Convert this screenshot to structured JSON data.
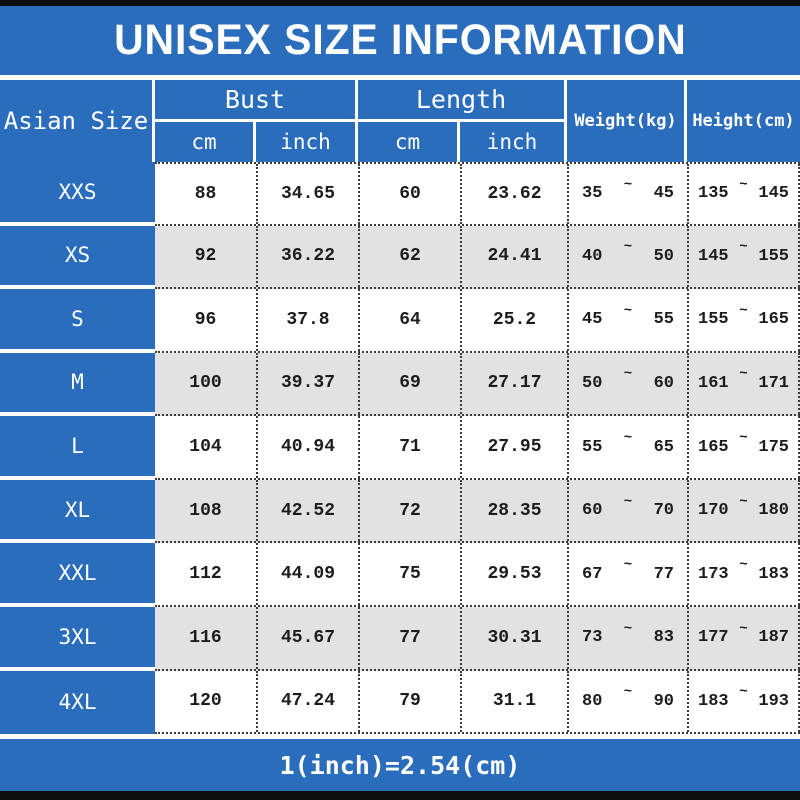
{
  "title": "UNISEX SIZE INFORMATION",
  "footer_note": "1(inch)=2.54(cm)",
  "colors": {
    "accent_blue": "#2b6dbd",
    "row_alt_gray": "#e3e2e2",
    "bar_black": "#0d0d0d",
    "text_dark": "#1c1c1c",
    "header_text": "#ffffff"
  },
  "header": {
    "size_col_label": "Asian Size",
    "groups": [
      {
        "label": "Bust",
        "subs": [
          "cm",
          "inch"
        ]
      },
      {
        "label": "Length",
        "subs": [
          "cm",
          "inch"
        ]
      }
    ],
    "weight_label": "Weight(kg)",
    "height_label": "Height(cm)"
  },
  "chart_data": {
    "type": "table",
    "title": "UNISEX SIZE INFORMATION",
    "range_separator": "~",
    "columns": [
      "Asian Size",
      "Bust cm",
      "Bust inch",
      "Length cm",
      "Length inch",
      "Weight(kg)",
      "Height(cm)"
    ],
    "rows": [
      {
        "size": "XXS",
        "bust_cm": "88",
        "bust_inch": "34.65",
        "length_cm": "60",
        "length_inch": "23.62",
        "weight_min": "35",
        "weight_max": "45",
        "height_min": "135",
        "height_max": "145"
      },
      {
        "size": "XS",
        "bust_cm": "92",
        "bust_inch": "36.22",
        "length_cm": "62",
        "length_inch": "24.41",
        "weight_min": "40",
        "weight_max": "50",
        "height_min": "145",
        "height_max": "155"
      },
      {
        "size": "S",
        "bust_cm": "96",
        "bust_inch": "37.8",
        "length_cm": "64",
        "length_inch": "25.2",
        "weight_min": "45",
        "weight_max": "55",
        "height_min": "155",
        "height_max": "165"
      },
      {
        "size": "M",
        "bust_cm": "100",
        "bust_inch": "39.37",
        "length_cm": "69",
        "length_inch": "27.17",
        "weight_min": "50",
        "weight_max": "60",
        "height_min": "161",
        "height_max": "171"
      },
      {
        "size": "L",
        "bust_cm": "104",
        "bust_inch": "40.94",
        "length_cm": "71",
        "length_inch": "27.95",
        "weight_min": "55",
        "weight_max": "65",
        "height_min": "165",
        "height_max": "175"
      },
      {
        "size": "XL",
        "bust_cm": "108",
        "bust_inch": "42.52",
        "length_cm": "72",
        "length_inch": "28.35",
        "weight_min": "60",
        "weight_max": "70",
        "height_min": "170",
        "height_max": "180"
      },
      {
        "size": "XXL",
        "bust_cm": "112",
        "bust_inch": "44.09",
        "length_cm": "75",
        "length_inch": "29.53",
        "weight_min": "67",
        "weight_max": "77",
        "height_min": "173",
        "height_max": "183"
      },
      {
        "size": "3XL",
        "bust_cm": "116",
        "bust_inch": "45.67",
        "length_cm": "77",
        "length_inch": "30.31",
        "weight_min": "73",
        "weight_max": "83",
        "height_min": "177",
        "height_max": "187"
      },
      {
        "size": "4XL",
        "bust_cm": "120",
        "bust_inch": "47.24",
        "length_cm": "79",
        "length_inch": "31.1",
        "weight_min": "80",
        "weight_max": "90",
        "height_min": "183",
        "height_max": "193"
      }
    ],
    "note": "1(inch)=2.54(cm)"
  }
}
